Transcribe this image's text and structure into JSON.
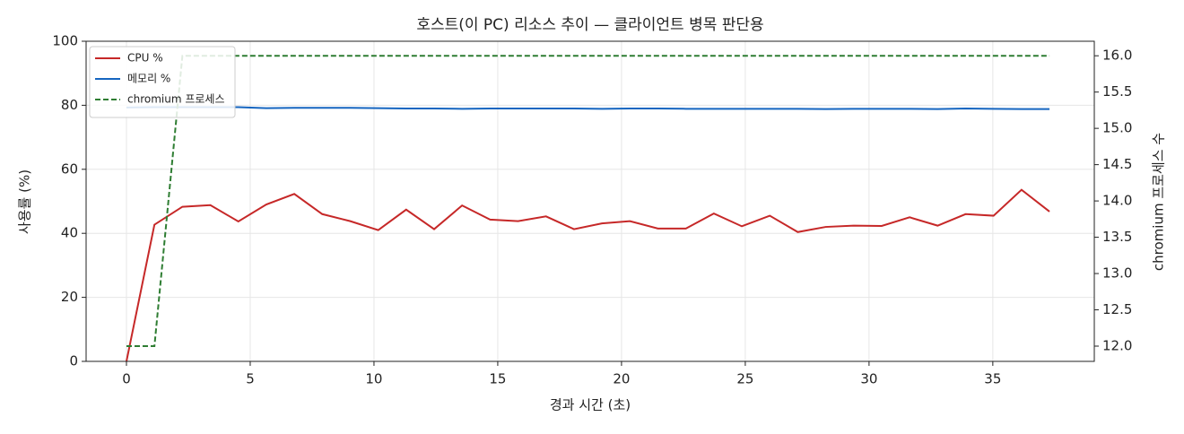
{
  "chart_data": {
    "type": "line",
    "title": "호스트(이 PC) 리소스 추이 — 클라이언트 병목 판단용",
    "x_label": "경과 시간 (초)",
    "y_label": "사용률 (%)",
    "y2_label": "chromium 프로세스 수",
    "x": [
      0,
      1.13,
      2.26,
      3.39,
      4.52,
      5.65,
      6.78,
      7.91,
      9.04,
      10.17,
      11.3,
      12.43,
      13.56,
      14.69,
      15.82,
      16.95,
      18.08,
      19.21,
      20.34,
      21.47,
      22.6,
      23.73,
      24.86,
      25.99,
      27.12,
      28.25,
      29.38,
      30.51,
      31.64,
      32.77,
      33.9,
      35.03,
      36.16,
      37.29
    ],
    "series": [
      {
        "name": "CPU %",
        "color": "#c62828",
        "linestyle": "solid",
        "values": [
          0,
          42.7,
          48.3,
          48.8,
          43.7,
          49,
          52.3,
          46,
          43.8,
          41,
          47.4,
          41.3,
          48.7,
          44.3,
          43.8,
          45.3,
          41.3,
          43.1,
          43.8,
          41.5,
          41.5,
          46.2,
          42.2,
          45.5,
          40.4,
          42,
          42.4,
          42.3,
          45,
          42.4,
          46,
          45.5,
          53.6,
          46.8
        ]
      },
      {
        "name": "메모리 %",
        "color": "#1565c0",
        "linestyle": "solid",
        "values": [
          79.3,
          79.4,
          79.4,
          79.4,
          79.4,
          79.1,
          79.2,
          79.2,
          79.2,
          79.1,
          79.0,
          79.0,
          78.9,
          79.0,
          79.0,
          79.0,
          79.0,
          78.9,
          79.0,
          79.0,
          78.9,
          78.9,
          78.9,
          78.9,
          78.9,
          78.8,
          78.9,
          78.9,
          78.9,
          78.8,
          79.0,
          78.9,
          78.8,
          78.8
        ]
      },
      {
        "name": "chromium 프로세스",
        "color": "#2e7d32",
        "linestyle": "dashed",
        "axis": "y2",
        "values": [
          12,
          12,
          16,
          16,
          16,
          16,
          16,
          16,
          16,
          16,
          16,
          16,
          16,
          16,
          16,
          16,
          16,
          16,
          16,
          16,
          16,
          16,
          16,
          16,
          16,
          16,
          16,
          16,
          16,
          16,
          16,
          16,
          16,
          16
        ]
      }
    ],
    "xlim": [
      -1.63,
      39.1
    ],
    "xticks": [
      0,
      5,
      10,
      15,
      20,
      25,
      30,
      35
    ],
    "ylim": [
      0,
      100
    ],
    "yticks": [
      0,
      20,
      40,
      60,
      80,
      100
    ],
    "y2lim": [
      11.79,
      16.2
    ],
    "y2ticks": [
      {
        "value": 12,
        "label": "12.0"
      },
      12.5,
      {
        "value": 13,
        "label": "13.0"
      },
      13.5,
      {
        "value": 14,
        "label": "14.0"
      },
      14.5,
      {
        "value": 15,
        "label": "15.0"
      },
      15.5,
      {
        "value": 16,
        "label": "16.0"
      }
    ],
    "grid": true,
    "legend": "upper left"
  }
}
